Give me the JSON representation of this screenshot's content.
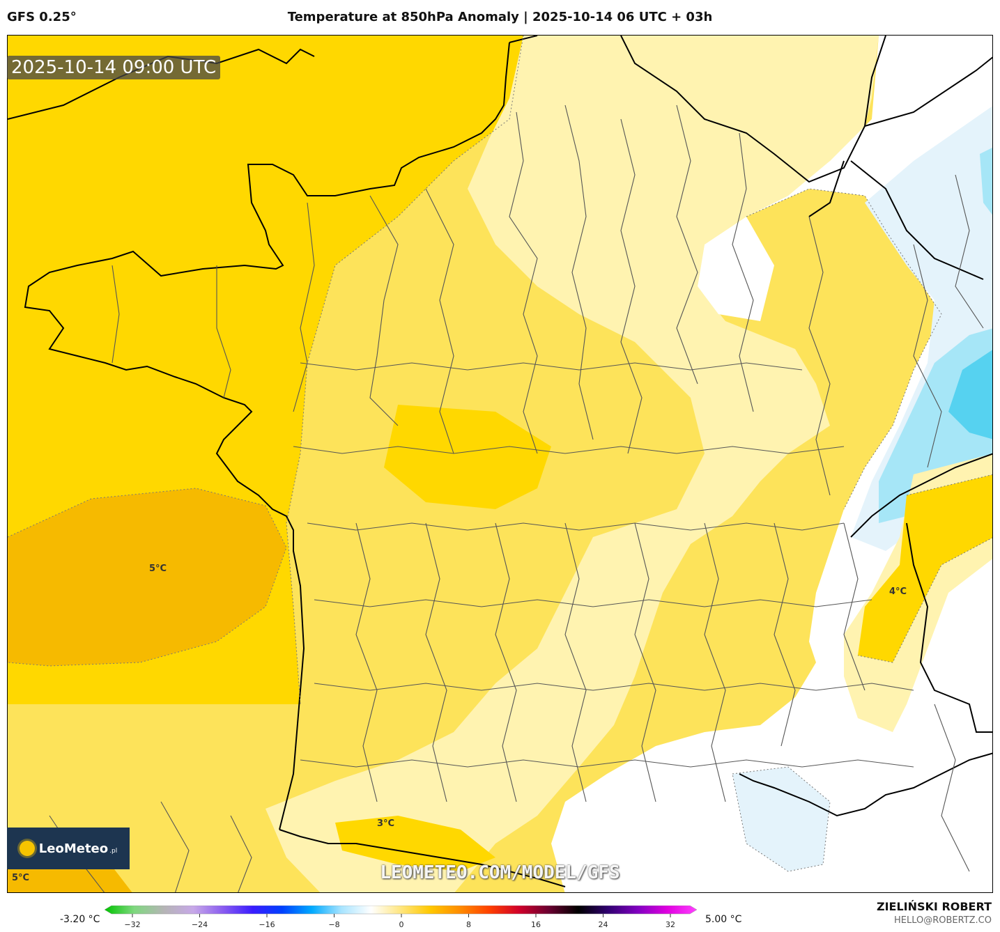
{
  "header": {
    "model": "GFS 0.25°",
    "title": "Temperature at 850hPa Anomaly | 2025-10-14 06 UTC + 03h"
  },
  "map": {
    "timestamp": "2025-10-14 09:00 UTC",
    "contour_labels": [
      "5°C",
      "4°C",
      "3°C",
      "5°C"
    ],
    "background_fill": "#fde35a",
    "colors": {
      "anomaly_plus5": "#f6ba00",
      "anomaly_plus4": "#ffd800",
      "anomaly_plus3": "#fde63c",
      "anomaly_plus1": "#fff3b0",
      "anomaly_zero": "#ffffff",
      "anomaly_minus1": "#e4f3fb",
      "anomaly_minus2": "#a6e6f7",
      "anomaly_minus3": "#56d2f0"
    }
  },
  "branding": {
    "logo": "LeoMeteo",
    "logo_suffix": ".pl",
    "watermark": "LEOMETEO.COM/MODEL/GFS"
  },
  "colorbar": {
    "min_label": "-3.20 °C",
    "max_label": "5.00 °C",
    "ticks": [
      "−32",
      "−24",
      "−16",
      "−8",
      "0",
      "8",
      "16",
      "24",
      "32"
    ],
    "stops": [
      "#00c400",
      "#7fd87f",
      "#b5b5b5",
      "#c7a8e8",
      "#8a5cf0",
      "#3a1cff",
      "#0040ff",
      "#00aaff",
      "#a8e4ff",
      "#ffffff",
      "#ffe680",
      "#ffc800",
      "#ff8c00",
      "#ff4000",
      "#d0002a",
      "#6a0030",
      "#000000",
      "#300070",
      "#8000c0",
      "#e000e0",
      "#ff40ff"
    ]
  },
  "author": {
    "name": "ZIELIŃSKI ROBERT",
    "email": "HELLO@ROBERTZ.CO"
  }
}
